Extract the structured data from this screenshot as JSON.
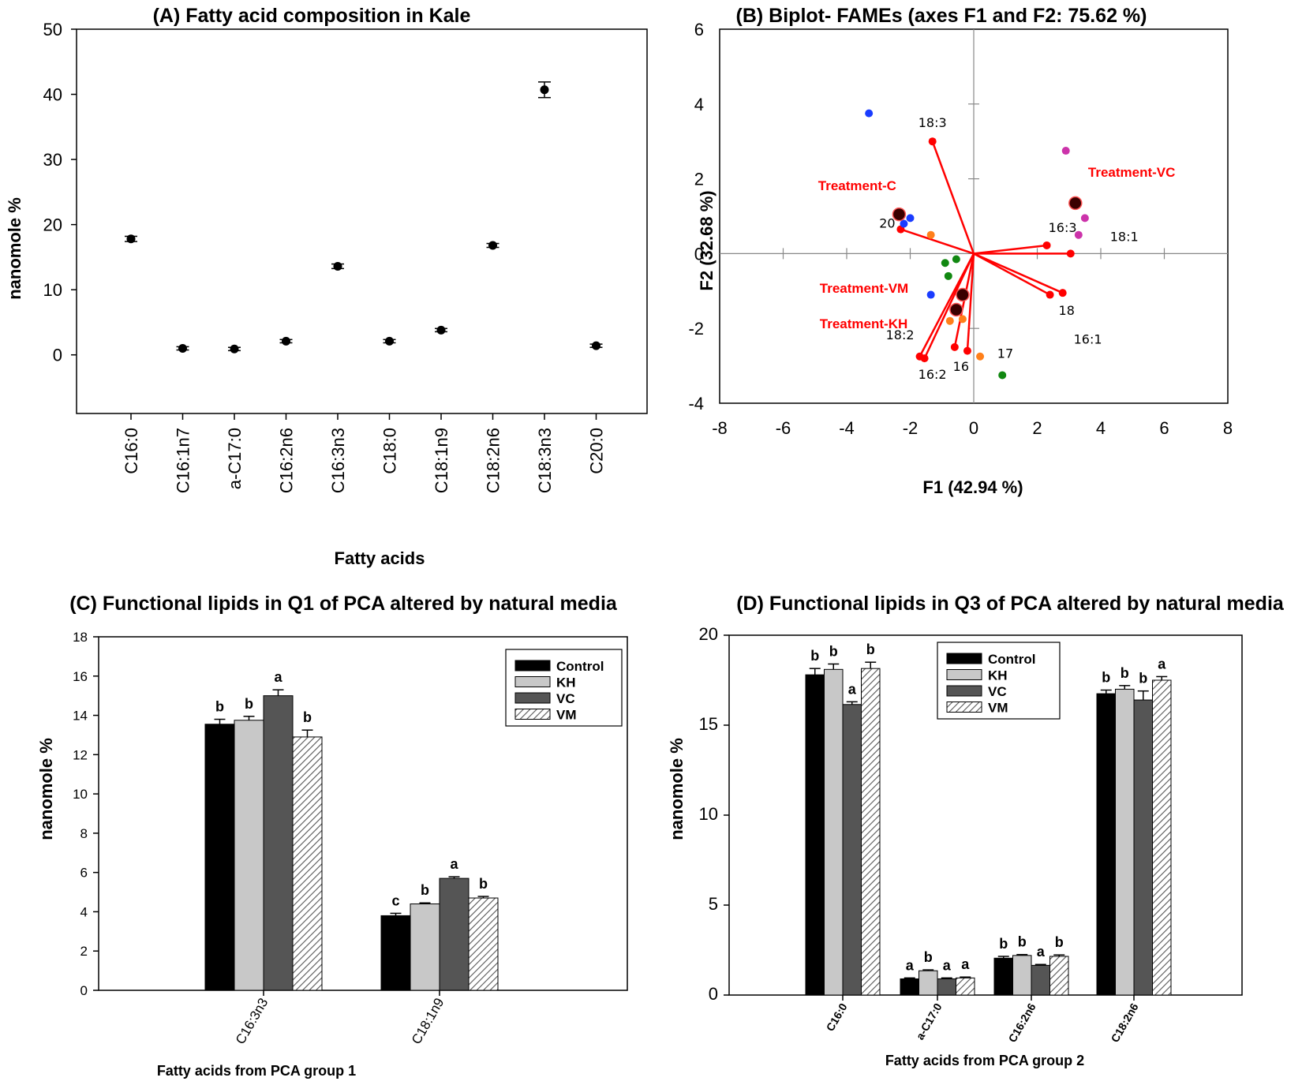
{
  "chart_data": [
    {
      "panel": "A",
      "type": "scatter",
      "title": "(A) Fatty acid composition in Kale",
      "xlabel": "Fatty acids",
      "ylabel": "nanomole %",
      "ylim": [
        -9,
        50
      ],
      "yticks": [
        "0",
        "10",
        "20",
        "30",
        "40",
        "50"
      ],
      "categories": [
        "C16:0",
        "C16:1n7",
        "a-C17:0",
        "C16:2n6",
        "C16:3n3",
        "C18:0",
        "C18:1n9",
        "C18:2n6",
        "C18:3n3",
        "C20:0"
      ],
      "values": [
        17.8,
        1.0,
        0.9,
        2.1,
        13.6,
        2.1,
        3.8,
        16.8,
        40.7,
        1.4
      ],
      "errors": [
        0.4,
        0.25,
        0.25,
        0.25,
        0.35,
        0.25,
        0.25,
        0.3,
        1.2,
        0.25
      ],
      "marker_color": "#000000"
    },
    {
      "panel": "B",
      "type": "scatter",
      "title": "(B) Biplot- FAMEs (axes F1 and F2: 75.62 %)",
      "xlabel": "F1 (42.94 %)",
      "ylabel": "F2 (32.68 %)",
      "xlim": [
        -8,
        8
      ],
      "ylim": [
        -4,
        6
      ],
      "xticks": [
        "-8",
        "-6",
        "-4",
        "-2",
        "0",
        "2",
        "4",
        "6",
        "8"
      ],
      "yticks": [
        "-4",
        "-2",
        "0",
        "2",
        "4",
        "6"
      ],
      "vectors": [
        {
          "label": "18:3",
          "x": -1.3,
          "y": 3.0
        },
        {
          "label": "20",
          "x": -2.3,
          "y": 0.65
        },
        {
          "label": "16:3",
          "x": 2.3,
          "y": 0.22
        },
        {
          "label": "18:1",
          "x": 3.05,
          "y": 0.0
        },
        {
          "label": "18",
          "x": 2.8,
          "y": -1.05
        },
        {
          "label": "16:1",
          "x": 2.4,
          "y": -1.1
        },
        {
          "label": "18:2",
          "x": -1.7,
          "y": -2.75
        },
        {
          "label": "16:2",
          "x": -1.55,
          "y": -2.8
        },
        {
          "label": "16",
          "x": -0.6,
          "y": -2.5
        },
        {
          "label": "17",
          "x": -0.2,
          "y": -2.6
        }
      ],
      "vector_color": "#ff0000",
      "observations": [
        {
          "group": "blue",
          "x": -3.3,
          "y": 3.75
        },
        {
          "group": "blue",
          "x": -2.2,
          "y": 0.8
        },
        {
          "group": "blue",
          "x": -2.0,
          "y": 0.95
        },
        {
          "group": "blue",
          "x": -1.35,
          "y": -1.1
        },
        {
          "group": "magenta",
          "x": 2.9,
          "y": 2.75
        },
        {
          "group": "magenta",
          "x": 3.5,
          "y": 0.95
        },
        {
          "group": "magenta",
          "x": 3.3,
          "y": 0.5
        },
        {
          "group": "orange",
          "x": -1.35,
          "y": 0.5
        },
        {
          "group": "orange",
          "x": -0.35,
          "y": -1.75
        },
        {
          "group": "orange",
          "x": -0.75,
          "y": -1.8
        },
        {
          "group": "orange",
          "x": 0.2,
          "y": -2.75
        },
        {
          "group": "green",
          "x": -0.9,
          "y": -0.25
        },
        {
          "group": "green",
          "x": -0.55,
          "y": -0.15
        },
        {
          "group": "green",
          "x": -0.8,
          "y": -0.6
        },
        {
          "group": "green",
          "x": 0.9,
          "y": -3.25
        }
      ],
      "group_colors": {
        "blue": "#1a3cff",
        "magenta": "#cc33aa",
        "orange": "#ff7f1a",
        "green": "#118811"
      },
      "centroids": [
        {
          "x": -2.35,
          "y": 1.05
        },
        {
          "x": 3.2,
          "y": 1.35
        },
        {
          "x": -0.35,
          "y": -1.1
        },
        {
          "x": -0.55,
          "y": -1.5
        }
      ],
      "treatments": [
        "Treatment-C",
        "Treatment-VC",
        "Treatment-VM",
        "Treatment-KH"
      ]
    },
    {
      "panel": "C",
      "type": "bar",
      "title": "(C) Functional lipids in Q1 of PCA altered by natural media",
      "xlabel": "Fatty acids from PCA group 1",
      "ylabel": "nanomole %",
      "ylim": [
        0,
        18
      ],
      "yticks": [
        "0",
        "2",
        "4",
        "6",
        "8",
        "10",
        "12",
        "14",
        "16",
        "18"
      ],
      "categories": [
        "C16:3n3",
        "C18:1n9"
      ],
      "series": [
        {
          "name": "Control",
          "values": [
            13.55,
            3.8
          ],
          "errors": [
            0.25,
            0.12
          ],
          "letters": [
            "b",
            "c"
          ]
        },
        {
          "name": "KH",
          "values": [
            13.75,
            4.4
          ],
          "errors": [
            0.2,
            0.05
          ],
          "letters": [
            "b",
            "b"
          ]
        },
        {
          "name": "VC",
          "values": [
            15.0,
            5.7
          ],
          "errors": [
            0.3,
            0.08
          ],
          "letters": [
            "a",
            "a"
          ]
        },
        {
          "name": "VM",
          "values": [
            12.9,
            4.7
          ],
          "errors": [
            0.35,
            0.08
          ],
          "letters": [
            "b",
            "b"
          ]
        }
      ],
      "legend_position": "top-right"
    },
    {
      "panel": "D",
      "type": "bar",
      "title": "(D) Functional lipids in Q3 of PCA altered by natural media",
      "xlabel": "Fatty acids from PCA group 2",
      "ylabel": "nanomole %",
      "ylim": [
        0,
        20
      ],
      "yticks": [
        "0",
        "5",
        "10",
        "15",
        "20"
      ],
      "categories": [
        "C16:0",
        "a-C17:0",
        "C16:2n6",
        "C18:2n6"
      ],
      "series": [
        {
          "name": "Control",
          "values": [
            17.8,
            0.9,
            2.05,
            16.75
          ],
          "errors": [
            0.35,
            0.05,
            0.1,
            0.2
          ],
          "letters": [
            "b",
            "a",
            "b",
            "b"
          ]
        },
        {
          "name": "KH",
          "values": [
            18.1,
            1.35,
            2.2,
            17.0
          ],
          "errors": [
            0.3,
            0.05,
            0.05,
            0.2
          ],
          "letters": [
            "b",
            "b",
            "b",
            "b"
          ]
        },
        {
          "name": "VC",
          "values": [
            16.15,
            0.9,
            1.65,
            16.4
          ],
          "errors": [
            0.15,
            0.05,
            0.05,
            0.5
          ],
          "letters": [
            "a",
            "a",
            "a",
            "b"
          ]
        },
        {
          "name": "VM",
          "values": [
            18.15,
            0.95,
            2.15,
            17.5
          ],
          "errors": [
            0.35,
            0.05,
            0.08,
            0.2
          ],
          "letters": [
            "b",
            "a",
            "b",
            "a"
          ]
        }
      ],
      "legend_position": "top-left"
    }
  ],
  "bar_styles": {
    "Control": "#000000",
    "KH": "#c8c8c8",
    "VC": "#555555",
    "VM": "hatch"
  }
}
